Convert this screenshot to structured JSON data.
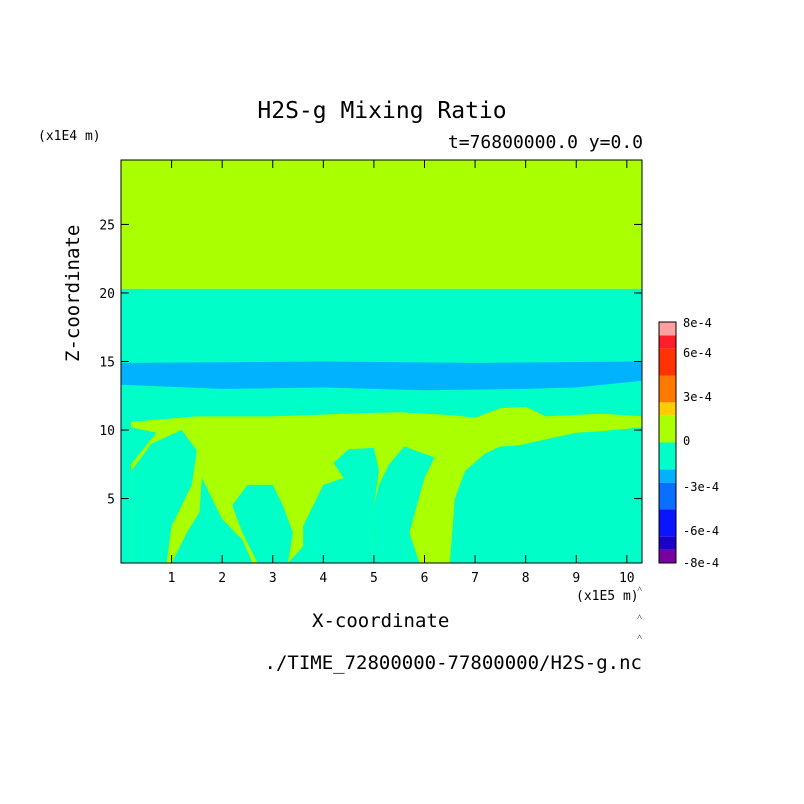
{
  "chart_data": {
    "type": "heatmap",
    "title": "H2S-g Mixing Ratio",
    "subtitle": "t=76800000.0 y=0.0",
    "xlabel": "X-coordinate",
    "ylabel": "Z-coordinate",
    "x_unit": "(x1E5 m)",
    "y_unit": "(x1E4 m)",
    "source": "./TIME_72800000-77800000/H2S-g.nc",
    "xlim": [
      0,
      10.3
    ],
    "ylim": [
      0.3,
      29.7
    ],
    "x_ticks": [
      1,
      2,
      3,
      4,
      5,
      6,
      7,
      8,
      9,
      10
    ],
    "y_ticks": [
      5,
      10,
      15,
      20,
      25
    ],
    "colorbar": {
      "labels": [
        "8e-4",
        "6e-4",
        "3e-4",
        "0",
        "-3e-4",
        "-6e-4",
        "-8e-4"
      ],
      "bands": [
        {
          "from": -0.0009,
          "to": -0.0008,
          "color": "#7800a0"
        },
        {
          "from": -0.0008,
          "to": -0.0007,
          "color": "#1a00c8"
        },
        {
          "from": -0.0007,
          "to": -0.0005,
          "color": "#0a14ff"
        },
        {
          "from": -0.0005,
          "to": -0.0003,
          "color": "#0a6eff"
        },
        {
          "from": -0.0003,
          "to": -0.0002,
          "color": "#00b2ff"
        },
        {
          "from": -0.0002,
          "to": 0.0,
          "color": "#00ffc8"
        },
        {
          "from": 0.0,
          "to": 0.0002,
          "color": "#aaff00"
        },
        {
          "from": 0.0002,
          "to": 0.0003,
          "color": "#ffcc00"
        },
        {
          "from": 0.0003,
          "to": 0.0005,
          "color": "#ff7800"
        },
        {
          "from": 0.0005,
          "to": 0.0007,
          "color": "#ff3200"
        },
        {
          "from": 0.0007,
          "to": 0.0008,
          "color": "#ff1e28"
        },
        {
          "from": 0.0008,
          "to": 0.0009,
          "color": "#ffa0a0"
        }
      ]
    },
    "regions": [
      {
        "name": "upper layer",
        "color": "#aaff00",
        "z_range": [
          20.3,
          29.7
        ]
      },
      {
        "name": "mid layer",
        "color": "#00ffc8",
        "z_range": [
          10.2,
          20.3
        ]
      },
      {
        "name": "band",
        "color": "#00b2ff",
        "z_range": [
          13.2,
          15.0
        ]
      },
      {
        "name": "lower layer",
        "color": "#00ffc8",
        "z_range": [
          0.3,
          10.2
        ]
      },
      {
        "name": "intrusions",
        "color": "#aaff00",
        "z_range": [
          0.3,
          11.3
        ]
      }
    ],
    "grid": false,
    "legend": "colorbar-right"
  }
}
